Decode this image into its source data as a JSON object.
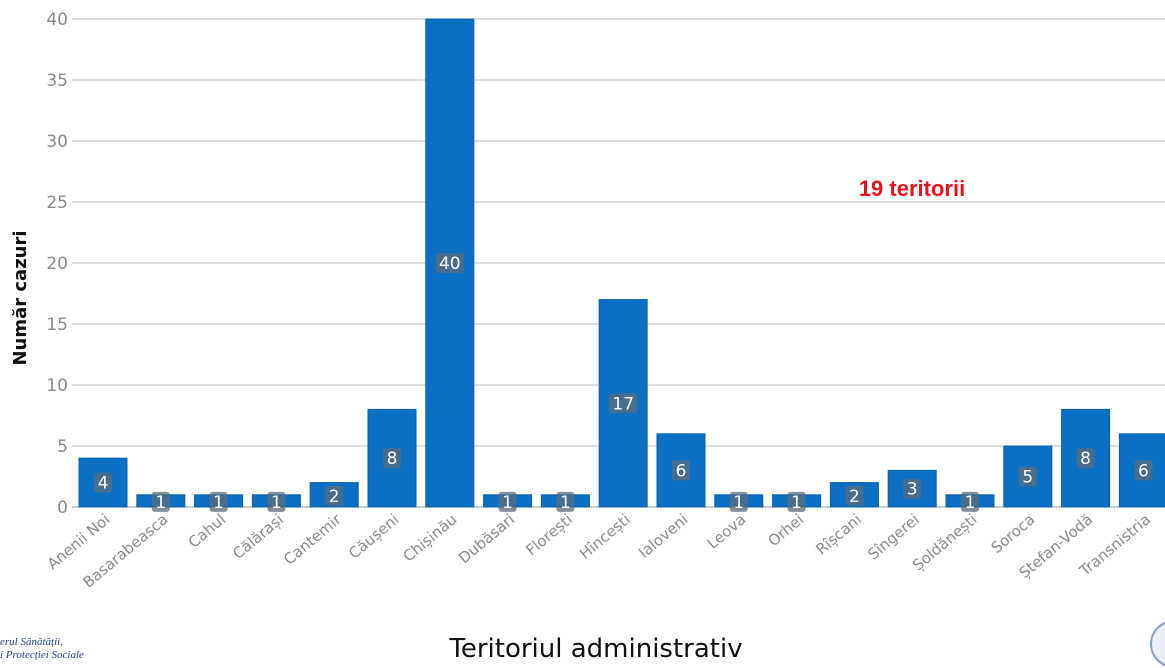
{
  "chart_data": {
    "type": "bar",
    "categories": [
      "Anenii Noi",
      "Basarabeasca",
      "Cahul",
      "Călărași",
      "Cantemir",
      "Căușeni",
      "Chișinău",
      "Dubăsari",
      "Florești",
      "Hîncești",
      "Ialoveni",
      "Leova",
      "Orhei",
      "Rîșcani",
      "Sîngerei",
      "Șoldănești",
      "Soroca",
      "Ștefan-Vodă",
      "Transnistria"
    ],
    "values": [
      4,
      1,
      1,
      1,
      2,
      8,
      40,
      1,
      1,
      17,
      6,
      1,
      1,
      2,
      3,
      1,
      5,
      8,
      6
    ],
    "title": "",
    "xlabel": "Teritoriul administrativ",
    "ylabel": "Număr cazuri",
    "ylim": [
      0,
      40
    ],
    "yticks": [
      0,
      5,
      10,
      15,
      20,
      25,
      30,
      35,
      40
    ],
    "grid": true,
    "annotation": "19 teritorii",
    "bar_color": "#0b6fc3",
    "annotation_color": "#e8121b"
  },
  "footer": {
    "line1": "erul Sănătății,",
    "line2": "i Protecției Sociale"
  }
}
